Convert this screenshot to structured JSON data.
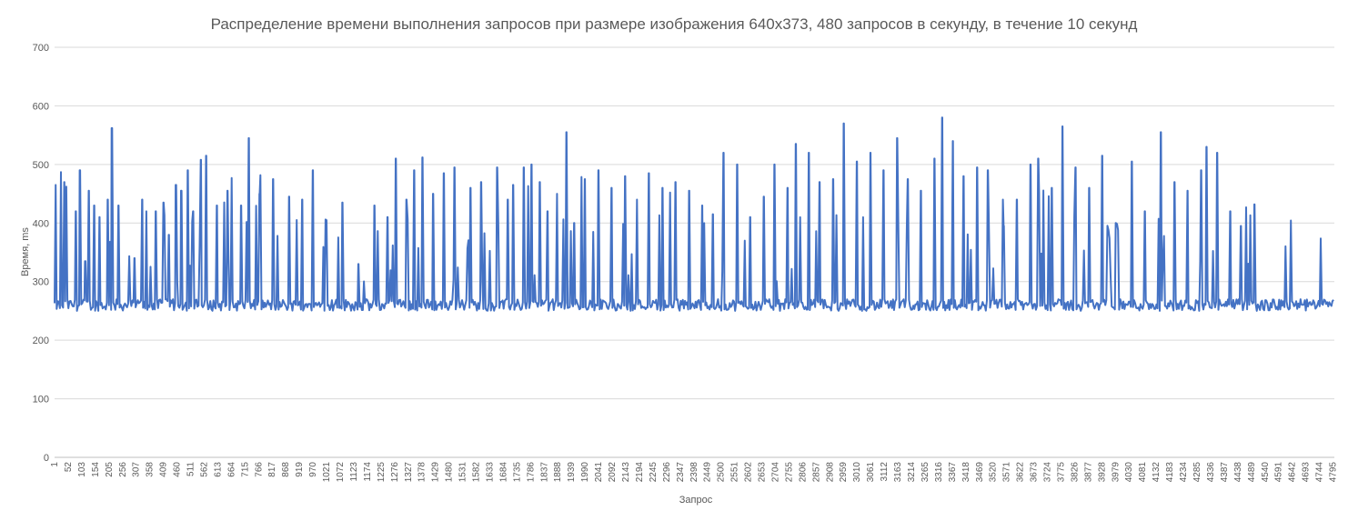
{
  "chart_data": {
    "type": "line",
    "title": "Распределение времени выполнения запросов при размере изображения 640x373, 480 запросов в секунду,  в течение 10 секунд",
    "xlabel": "Запрос",
    "ylabel": "Время, ms",
    "ylim": [
      0,
      700
    ],
    "yticks": [
      "0",
      "100",
      "200",
      "300",
      "400",
      "500",
      "600",
      "700"
    ],
    "xlim": [
      1,
      4800
    ],
    "xticks": [
      "1",
      "52",
      "103",
      "154",
      "205",
      "256",
      "307",
      "358",
      "409",
      "460",
      "511",
      "562",
      "613",
      "664",
      "715",
      "766",
      "817",
      "868",
      "919",
      "970",
      "1021",
      "1072",
      "1123",
      "1174",
      "1225",
      "1276",
      "1327",
      "1378",
      "1429",
      "1480",
      "1531",
      "1582",
      "1633",
      "1684",
      "1735",
      "1786",
      "1837",
      "1888",
      "1939",
      "1990",
      "2041",
      "2092",
      "2143",
      "2194",
      "2245",
      "2296",
      "2347",
      "2398",
      "2449",
      "2500",
      "2551",
      "2602",
      "2653",
      "2704",
      "2755",
      "2806",
      "2857",
      "2908",
      "2959",
      "3010",
      "3061",
      "3112",
      "3163",
      "3214",
      "3265",
      "3316",
      "3367",
      "3418",
      "3469",
      "3520",
      "3571",
      "3622",
      "3673",
      "3724",
      "3775",
      "3826",
      "3877",
      "3928",
      "3979",
      "4030",
      "4081",
      "4132",
      "4183",
      "4234",
      "4285",
      "4336",
      "4387",
      "4438",
      "4489",
      "4540",
      "4591",
      "4642",
      "4693",
      "4744",
      "4795"
    ],
    "grid": true,
    "legend": "none",
    "series": [
      {
        "color": "#4472c4",
        "baseline_ms": 255,
        "peaks": [
          [
            5,
            465
          ],
          [
            25,
            487
          ],
          [
            38,
            470
          ],
          [
            45,
            462
          ],
          [
            80,
            420
          ],
          [
            95,
            490
          ],
          [
            115,
            335
          ],
          [
            130,
            455
          ],
          [
            150,
            430
          ],
          [
            170,
            410
          ],
          [
            200,
            440
          ],
          [
            215,
            562
          ],
          [
            240,
            430
          ],
          [
            300,
            340
          ],
          [
            330,
            440
          ],
          [
            345,
            420
          ],
          [
            380,
            420
          ],
          [
            410,
            435
          ],
          [
            430,
            380
          ],
          [
            455,
            465
          ],
          [
            475,
            455
          ],
          [
            500,
            490
          ],
          [
            520,
            420
          ],
          [
            550,
            508
          ],
          [
            570,
            515
          ],
          [
            610,
            430
          ],
          [
            650,
            455
          ],
          [
            665,
            477
          ],
          [
            700,
            430
          ],
          [
            730,
            545
          ],
          [
            770,
            450
          ],
          [
            820,
            475
          ],
          [
            880,
            445
          ],
          [
            930,
            440
          ],
          [
            970,
            490
          ],
          [
            1020,
            405
          ],
          [
            1080,
            435
          ],
          [
            1140,
            330
          ],
          [
            1200,
            430
          ],
          [
            1250,
            410
          ],
          [
            1280,
            510
          ],
          [
            1320,
            440
          ],
          [
            1350,
            490
          ],
          [
            1380,
            512
          ],
          [
            1420,
            450
          ],
          [
            1460,
            485
          ],
          [
            1500,
            495
          ],
          [
            1560,
            460
          ],
          [
            1600,
            470
          ],
          [
            1660,
            495
          ],
          [
            1700,
            440
          ],
          [
            1720,
            465
          ],
          [
            1760,
            495
          ],
          [
            1790,
            500
          ],
          [
            1820,
            470
          ],
          [
            1850,
            420
          ],
          [
            1885,
            450
          ],
          [
            1920,
            555
          ],
          [
            1950,
            400
          ],
          [
            1990,
            475
          ],
          [
            2040,
            490
          ],
          [
            2090,
            460
          ],
          [
            2140,
            480
          ],
          [
            2185,
            440
          ],
          [
            2230,
            485
          ],
          [
            2280,
            460
          ],
          [
            2330,
            470
          ],
          [
            2380,
            455
          ],
          [
            2430,
            430
          ],
          [
            2470,
            415
          ],
          [
            2510,
            520
          ],
          [
            2560,
            500
          ],
          [
            2610,
            410
          ],
          [
            2660,
            445
          ],
          [
            2700,
            500
          ],
          [
            2750,
            460
          ],
          [
            2780,
            535
          ],
          [
            2830,
            520
          ],
          [
            2870,
            470
          ],
          [
            2920,
            475
          ],
          [
            2960,
            570
          ],
          [
            3010,
            505
          ],
          [
            3060,
            520
          ],
          [
            3110,
            490
          ],
          [
            3160,
            545
          ],
          [
            3200,
            475
          ],
          [
            3250,
            455
          ],
          [
            3300,
            510
          ],
          [
            3330,
            580
          ],
          [
            3370,
            540
          ],
          [
            3410,
            480
          ],
          [
            3460,
            495
          ],
          [
            3500,
            490
          ],
          [
            3560,
            395
          ],
          [
            3610,
            440
          ],
          [
            3660,
            500
          ],
          [
            3690,
            510
          ],
          [
            3740,
            460
          ],
          [
            3780,
            565
          ],
          [
            3830,
            495
          ],
          [
            3880,
            460
          ],
          [
            3930,
            515
          ],
          [
            3980,
            400
          ],
          [
            4040,
            505
          ],
          [
            4090,
            420
          ],
          [
            4150,
            555
          ],
          [
            4200,
            470
          ],
          [
            4250,
            455
          ],
          [
            4300,
            490
          ],
          [
            4320,
            530
          ],
          [
            4360,
            520
          ],
          [
            4410,
            420
          ],
          [
            4450,
            395
          ],
          [
            4500,
            432
          ]
        ]
      }
    ]
  }
}
